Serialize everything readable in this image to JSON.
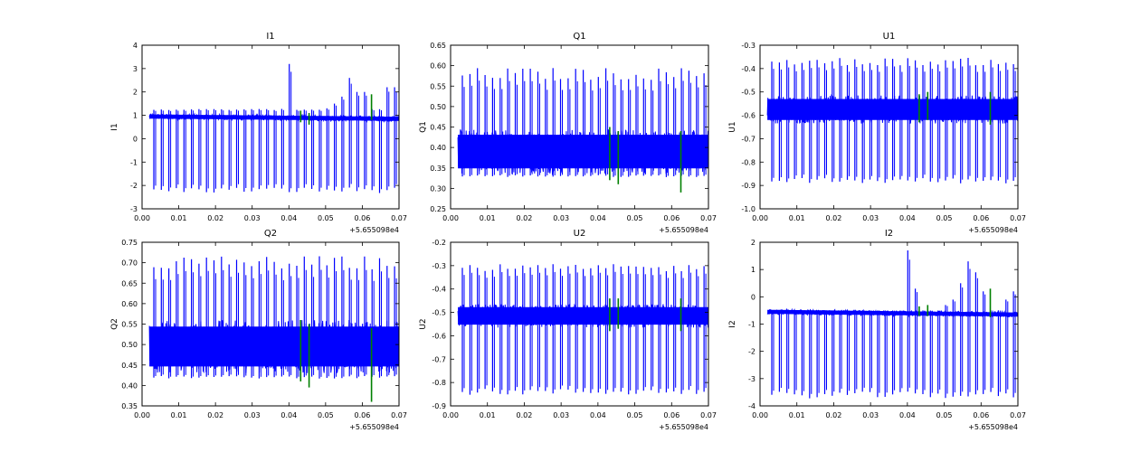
{
  "chart_data": [
    {
      "type": "line",
      "title": "I1",
      "ylabel": "I1",
      "xlabel": "",
      "xlim": [
        0.0,
        0.07
      ],
      "ylim": [
        -3,
        4
      ],
      "xticks": [
        "0.00",
        "0.01",
        "0.02",
        "0.03",
        "0.04",
        "0.05",
        "0.06",
        "0.07"
      ],
      "yticks": [
        "-3",
        "-2",
        "-1",
        "0",
        "1",
        "2",
        "3",
        "4"
      ],
      "x_offset_label": "+5.655098e4",
      "band": {
        "center": 0.95,
        "drift_end": 0.85,
        "half_width": 0.12
      },
      "spike_spacing": 0.00205,
      "spike_low": -2.2,
      "spike_high_typical": 1.25,
      "high_spikes": [
        [
          0.0398,
          2.3
        ],
        [
          0.0405,
          3.2
        ],
        [
          0.0505,
          1.3
        ],
        [
          0.0525,
          1.5
        ],
        [
          0.0545,
          1.8
        ],
        [
          0.0565,
          2.6
        ],
        [
          0.059,
          2.0
        ],
        [
          0.0615,
          2.0
        ],
        [
          0.0665,
          2.2
        ],
        [
          0.069,
          2.2
        ]
      ],
      "green_marks": [
        [
          0.0432,
          0.7,
          1.2
        ],
        [
          0.0455,
          0.6,
          1.1
        ],
        [
          0.0625,
          0.8,
          1.9
        ]
      ],
      "colors": {
        "series": "#0000ff",
        "marks": "#008000"
      }
    },
    {
      "type": "line",
      "title": "Q1",
      "ylabel": "Q1",
      "xlabel": "",
      "xlim": [
        0.0,
        0.07
      ],
      "ylim": [
        0.25,
        0.65
      ],
      "xticks": [
        "0.00",
        "0.01",
        "0.02",
        "0.03",
        "0.04",
        "0.05",
        "0.06",
        "0.07"
      ],
      "yticks": [
        "0.25",
        "0.30",
        "0.35",
        "0.40",
        "0.45",
        "0.50",
        "0.55",
        "0.60",
        "0.65"
      ],
      "x_offset_label": "+5.655098e4",
      "band": {
        "center": 0.39,
        "drift_end": 0.39,
        "half_width": 0.055
      },
      "spike_spacing": 0.00205,
      "spike_low": 0.33,
      "spike_high_typical": 0.58,
      "high_spikes": [],
      "green_marks": [
        [
          0.0432,
          0.32,
          0.45
        ],
        [
          0.0455,
          0.31,
          0.44
        ],
        [
          0.0625,
          0.29,
          0.44
        ]
      ],
      "colors": {
        "series": "#0000ff",
        "marks": "#008000"
      }
    },
    {
      "type": "line",
      "title": "U1",
      "ylabel": "U1",
      "xlabel": "",
      "xlim": [
        0.0,
        0.07
      ],
      "ylim": [
        -1.0,
        -0.3
      ],
      "xticks": [
        "0.00",
        "0.01",
        "0.02",
        "0.03",
        "0.04",
        "0.05",
        "0.06",
        "0.07"
      ],
      "yticks": [
        "-1.0",
        "-0.9",
        "-0.8",
        "-0.7",
        "-0.6",
        "-0.5",
        "-0.4",
        "-0.3"
      ],
      "x_offset_label": "+5.655098e4",
      "band": {
        "center": -0.575,
        "drift_end": -0.575,
        "half_width": 0.06
      },
      "spike_spacing": 0.00205,
      "spike_low": -0.88,
      "spike_high_typical": -0.37,
      "high_spikes": [],
      "green_marks": [
        [
          0.0432,
          -0.63,
          -0.51
        ],
        [
          0.0455,
          -0.62,
          -0.5
        ],
        [
          0.0625,
          -0.64,
          -0.5
        ]
      ],
      "colors": {
        "series": "#0000ff",
        "marks": "#008000"
      }
    },
    {
      "type": "line",
      "title": "Q2",
      "ylabel": "Q2",
      "xlabel": "",
      "xlim": [
        0.0,
        0.07
      ],
      "ylim": [
        0.35,
        0.75
      ],
      "xticks": [
        "0.00",
        "0.01",
        "0.02",
        "0.03",
        "0.04",
        "0.05",
        "0.06",
        "0.07"
      ],
      "yticks": [
        "0.35",
        "0.40",
        "0.45",
        "0.50",
        "0.55",
        "0.60",
        "0.65",
        "0.70",
        "0.75"
      ],
      "x_offset_label": "+5.655098e4",
      "band": {
        "center": 0.495,
        "drift_end": 0.495,
        "half_width": 0.065
      },
      "spike_spacing": 0.00205,
      "spike_low": 0.42,
      "spike_high_typical": 0.7,
      "high_spikes": [],
      "green_marks": [
        [
          0.0432,
          0.41,
          0.56
        ],
        [
          0.0455,
          0.395,
          0.55
        ],
        [
          0.0625,
          0.36,
          0.54
        ]
      ],
      "colors": {
        "series": "#0000ff",
        "marks": "#008000"
      }
    },
    {
      "type": "line",
      "title": "U2",
      "ylabel": "U2",
      "xlabel": "",
      "xlim": [
        0.0,
        0.07
      ],
      "ylim": [
        -0.9,
        -0.2
      ],
      "xticks": [
        "0.00",
        "0.01",
        "0.02",
        "0.03",
        "0.04",
        "0.05",
        "0.06",
        "0.07"
      ],
      "yticks": [
        "-0.9",
        "-0.8",
        "-0.7",
        "-0.6",
        "-0.5",
        "-0.4",
        "-0.3",
        "-0.2"
      ],
      "x_offset_label": "+5.655098e4",
      "band": {
        "center": -0.515,
        "drift_end": -0.515,
        "half_width": 0.05
      },
      "spike_spacing": 0.00205,
      "spike_low": -0.84,
      "spike_high_typical": -0.31,
      "high_spikes": [],
      "green_marks": [
        [
          0.0432,
          -0.58,
          -0.44
        ],
        [
          0.0455,
          -0.57,
          -0.44
        ],
        [
          0.0625,
          -0.58,
          -0.44
        ]
      ],
      "colors": {
        "series": "#0000ff",
        "marks": "#008000"
      }
    },
    {
      "type": "line",
      "title": "I2",
      "ylabel": "I2",
      "xlabel": "",
      "xlim": [
        0.0,
        0.07
      ],
      "ylim": [
        -4,
        2
      ],
      "xticks": [
        "0.00",
        "0.01",
        "0.02",
        "0.03",
        "0.04",
        "0.05",
        "0.06",
        "0.07"
      ],
      "yticks": [
        "-4",
        "-3",
        "-2",
        "-1",
        "0",
        "1",
        "2"
      ],
      "x_offset_label": "+5.655098e4",
      "band": {
        "center": -0.55,
        "drift_end": -0.65,
        "half_width": 0.1
      },
      "spike_spacing": 0.00205,
      "spike_low": -3.6,
      "spike_high_typical": -0.5,
      "high_spikes": [
        [
          0.0398,
          1.2
        ],
        [
          0.0405,
          1.7
        ],
        [
          0.0425,
          0.3
        ],
        [
          0.0505,
          -0.3
        ],
        [
          0.0525,
          -0.1
        ],
        [
          0.0545,
          0.5
        ],
        [
          0.0565,
          1.3
        ],
        [
          0.059,
          0.9
        ],
        [
          0.0615,
          0.2
        ],
        [
          0.0665,
          -0.1
        ],
        [
          0.069,
          0.2
        ]
      ],
      "green_marks": [
        [
          0.0432,
          -0.7,
          -0.35
        ],
        [
          0.0455,
          -0.7,
          -0.3
        ],
        [
          0.0625,
          -0.75,
          0.3
        ]
      ],
      "colors": {
        "series": "#0000ff",
        "marks": "#008000"
      }
    }
  ]
}
